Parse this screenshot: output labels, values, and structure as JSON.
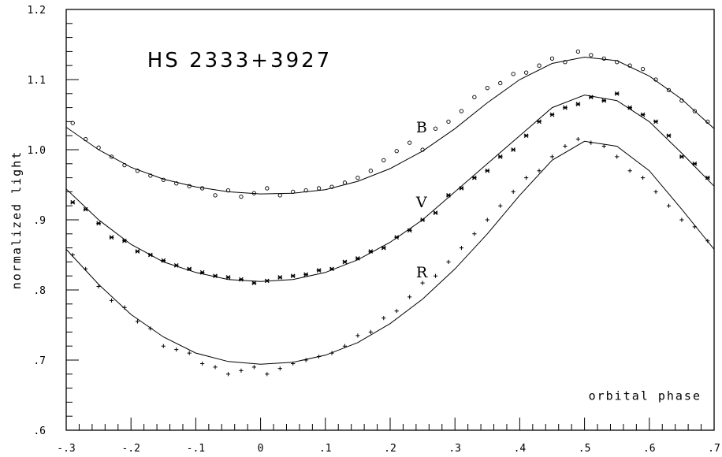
{
  "chart_data": {
    "type": "scatter",
    "title": "HS 2333+3927",
    "xlabel": "orbital phase",
    "ylabel": "normalized light",
    "xlim": [
      -0.3,
      0.7
    ],
    "ylim": [
      0.6,
      1.2
    ],
    "x_ticks": [
      -0.3,
      -0.2,
      -0.1,
      0,
      0.1,
      0.2,
      0.3,
      0.4,
      0.5,
      0.6,
      0.7
    ],
    "x_tick_labels": [
      "-.3",
      "-.2",
      "-.1",
      "0",
      ".1",
      ".2",
      ".3",
      ".4",
      ".5",
      ".6",
      ".7"
    ],
    "y_ticks": [
      0.6,
      0.7,
      0.8,
      0.9,
      1.0,
      1.1,
      1.2
    ],
    "y_tick_labels": [
      ".6",
      ".7",
      ".8",
      ".9",
      "1.0",
      "1.1",
      "1.2"
    ],
    "grid": false,
    "series": [
      {
        "name": "B",
        "marker": "circle",
        "label_at": [
          0.24,
          1.025
        ],
        "fit_curve": {
          "x": [
            -0.3,
            -0.25,
            -0.2,
            -0.15,
            -0.1,
            -0.05,
            0.0,
            0.05,
            0.1,
            0.15,
            0.2,
            0.25,
            0.3,
            0.35,
            0.4,
            0.45,
            0.5,
            0.55,
            0.6,
            0.65,
            0.7
          ],
          "y": [
            1.032,
            1.0,
            0.975,
            0.958,
            0.947,
            0.94,
            0.937,
            0.938,
            0.943,
            0.955,
            0.973,
            0.998,
            1.03,
            1.067,
            1.1,
            1.123,
            1.132,
            1.127,
            1.105,
            1.072,
            1.03
          ]
        },
        "points": {
          "x": [
            -0.29,
            -0.27,
            -0.25,
            -0.23,
            -0.21,
            -0.19,
            -0.17,
            -0.15,
            -0.13,
            -0.11,
            -0.09,
            -0.07,
            -0.05,
            -0.03,
            -0.01,
            0.01,
            0.03,
            0.05,
            0.07,
            0.09,
            0.11,
            0.13,
            0.15,
            0.17,
            0.19,
            0.21,
            0.23,
            0.25,
            0.27,
            0.29,
            0.31,
            0.33,
            0.35,
            0.37,
            0.39,
            0.41,
            0.43,
            0.45,
            0.47,
            0.49,
            0.51,
            0.53,
            0.55,
            0.57,
            0.59,
            0.61,
            0.63,
            0.65,
            0.67,
            0.69
          ],
          "y": [
            1.038,
            1.015,
            1.003,
            0.99,
            0.978,
            0.97,
            0.963,
            0.957,
            0.952,
            0.948,
            0.945,
            0.935,
            0.942,
            0.933,
            0.938,
            0.945,
            0.935,
            0.94,
            0.942,
            0.945,
            0.947,
            0.953,
            0.96,
            0.97,
            0.985,
            0.998,
            1.01,
            1.0,
            1.03,
            1.04,
            1.055,
            1.075,
            1.088,
            1.095,
            1.108,
            1.11,
            1.12,
            1.13,
            1.125,
            1.14,
            1.135,
            1.13,
            1.125,
            1.12,
            1.115,
            1.1,
            1.085,
            1.07,
            1.055,
            1.04
          ]
        }
      },
      {
        "name": "V",
        "marker": "asterisk",
        "label_at": [
          0.24,
          0.918
        ],
        "fit_curve": {
          "x": [
            -0.3,
            -0.25,
            -0.2,
            -0.15,
            -0.1,
            -0.05,
            0.0,
            0.05,
            0.1,
            0.15,
            0.2,
            0.25,
            0.3,
            0.35,
            0.4,
            0.45,
            0.5,
            0.55,
            0.6,
            0.65,
            0.7
          ],
          "y": [
            0.944,
            0.9,
            0.865,
            0.84,
            0.825,
            0.815,
            0.812,
            0.815,
            0.825,
            0.843,
            0.868,
            0.9,
            0.94,
            0.98,
            1.02,
            1.06,
            1.078,
            1.07,
            1.04,
            0.995,
            0.948
          ]
        },
        "points": {
          "x": [
            -0.29,
            -0.27,
            -0.25,
            -0.23,
            -0.21,
            -0.19,
            -0.17,
            -0.15,
            -0.13,
            -0.11,
            -0.09,
            -0.07,
            -0.05,
            -0.03,
            -0.01,
            0.01,
            0.03,
            0.05,
            0.07,
            0.09,
            0.11,
            0.13,
            0.15,
            0.17,
            0.19,
            0.21,
            0.23,
            0.25,
            0.27,
            0.29,
            0.31,
            0.33,
            0.35,
            0.37,
            0.39,
            0.41,
            0.43,
            0.45,
            0.47,
            0.49,
            0.51,
            0.53,
            0.55,
            0.57,
            0.59,
            0.61,
            0.63,
            0.65,
            0.67,
            0.69
          ],
          "y": [
            0.925,
            0.915,
            0.895,
            0.875,
            0.87,
            0.855,
            0.85,
            0.842,
            0.835,
            0.83,
            0.825,
            0.82,
            0.818,
            0.815,
            0.81,
            0.813,
            0.818,
            0.82,
            0.822,
            0.828,
            0.83,
            0.84,
            0.845,
            0.855,
            0.86,
            0.875,
            0.885,
            0.9,
            0.91,
            0.935,
            0.945,
            0.96,
            0.97,
            0.99,
            1.0,
            1.02,
            1.04,
            1.05,
            1.06,
            1.065,
            1.075,
            1.07,
            1.08,
            1.06,
            1.05,
            1.04,
            1.02,
            0.99,
            0.98,
            0.96
          ]
        }
      },
      {
        "name": "R",
        "marker": "plus",
        "label_at": [
          0.24,
          0.818
        ],
        "fit_curve": {
          "x": [
            -0.3,
            -0.25,
            -0.2,
            -0.15,
            -0.1,
            -0.05,
            0.0,
            0.05,
            0.1,
            0.15,
            0.2,
            0.25,
            0.3,
            0.35,
            0.4,
            0.45,
            0.5,
            0.55,
            0.6,
            0.65,
            0.7
          ],
          "y": [
            0.858,
            0.808,
            0.765,
            0.733,
            0.71,
            0.698,
            0.694,
            0.697,
            0.707,
            0.725,
            0.752,
            0.787,
            0.83,
            0.88,
            0.935,
            0.985,
            1.012,
            1.005,
            0.97,
            0.915,
            0.858
          ]
        },
        "points": {
          "x": [
            -0.29,
            -0.27,
            -0.25,
            -0.23,
            -0.21,
            -0.19,
            -0.17,
            -0.15,
            -0.13,
            -0.11,
            -0.09,
            -0.07,
            -0.05,
            -0.03,
            -0.01,
            0.01,
            0.03,
            0.05,
            0.07,
            0.09,
            0.11,
            0.13,
            0.15,
            0.17,
            0.19,
            0.21,
            0.23,
            0.25,
            0.27,
            0.29,
            0.31,
            0.33,
            0.35,
            0.37,
            0.39,
            0.41,
            0.43,
            0.45,
            0.47,
            0.49,
            0.51,
            0.53,
            0.55,
            0.57,
            0.59,
            0.61,
            0.63,
            0.65,
            0.67,
            0.69
          ],
          "y": [
            0.85,
            0.83,
            0.805,
            0.785,
            0.775,
            0.755,
            0.745,
            0.72,
            0.715,
            0.71,
            0.695,
            0.69,
            0.68,
            0.685,
            0.69,
            0.68,
            0.688,
            0.695,
            0.7,
            0.705,
            0.71,
            0.72,
            0.735,
            0.74,
            0.76,
            0.77,
            0.79,
            0.81,
            0.82,
            0.84,
            0.86,
            0.88,
            0.9,
            0.92,
            0.94,
            0.96,
            0.97,
            0.99,
            1.005,
            1.015,
            1.01,
            1.005,
            0.99,
            0.97,
            0.96,
            0.94,
            0.92,
            0.9,
            0.89,
            0.87
          ]
        }
      }
    ]
  }
}
